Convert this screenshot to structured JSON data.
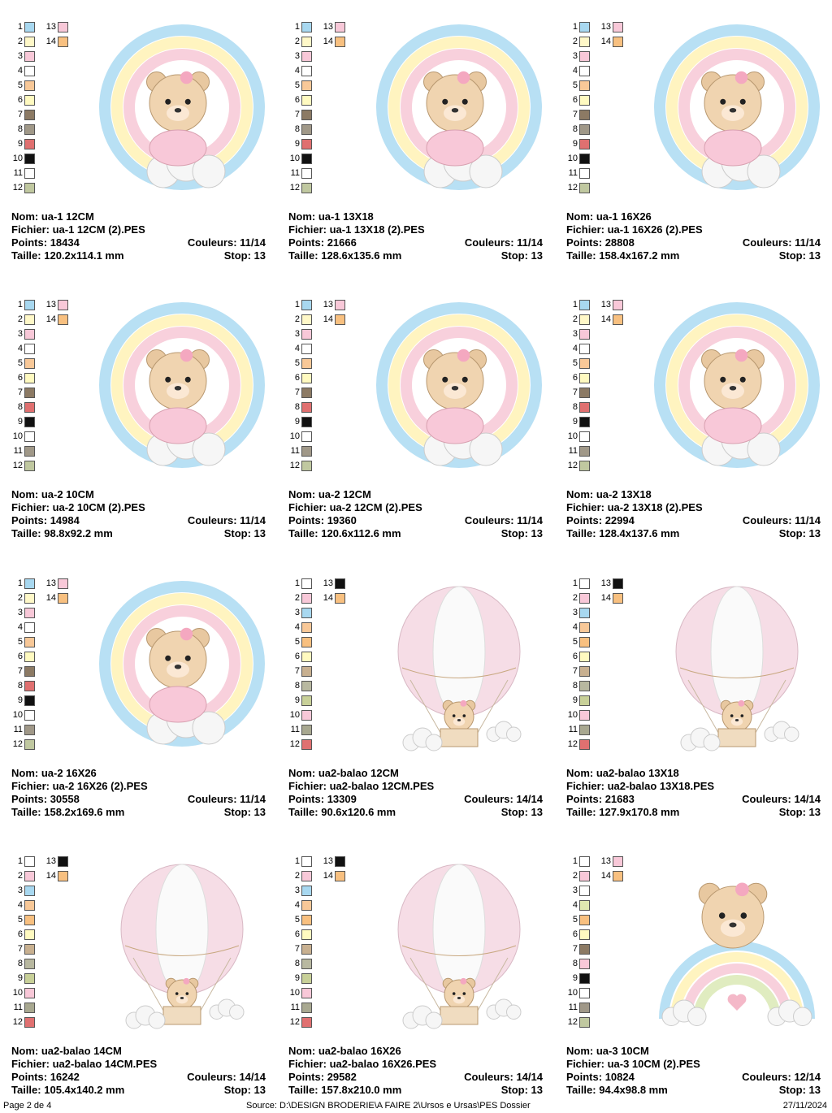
{
  "labels": {
    "name": "Nom:",
    "file": "Fichier:",
    "points": "Points:",
    "colors": "Couleurs:",
    "size": "Taille:",
    "stop": "Stop:"
  },
  "swatch_numbers": [
    1,
    2,
    3,
    4,
    5,
    6,
    7,
    8,
    9,
    10,
    11,
    12,
    13,
    14
  ],
  "designs": [
    {
      "name": "ua-1 12CM",
      "file": "ua-1 12CM (2).PES",
      "points": "18434",
      "colors": "11/14",
      "size": "120.2x114.1 mm",
      "stop": "13",
      "swatch_colors": [
        "#a8d8f0",
        "#fff8c8",
        "#f8c8d8",
        "#ffffff",
        "#f8c898",
        "#fffac0",
        "#8c7a64",
        "#a09888",
        "#e07070",
        "#111111",
        "#ffffff",
        "#c0c8a0",
        "#f8c8d8",
        "#f8c080"
      ]
    },
    {
      "name": "ua-1 13X18",
      "file": "ua-1 13X18 (2).PES",
      "points": "21666",
      "colors": "11/14",
      "size": "128.6x135.6 mm",
      "stop": "13",
      "swatch_colors": [
        "#a8d8f0",
        "#fff8c8",
        "#f8c8d8",
        "#ffffff",
        "#f8c898",
        "#fffac0",
        "#8c7a64",
        "#a09888",
        "#e07070",
        "#111111",
        "#ffffff",
        "#c0c8a0",
        "#f8c8d8",
        "#f8c080"
      ]
    },
    {
      "name": "ua-1 16X26",
      "file": "ua-1 16X26 (2).PES",
      "points": "28808",
      "colors": "11/14",
      "size": "158.4x167.2 mm",
      "stop": "13",
      "swatch_colors": [
        "#a8d8f0",
        "#fff8c8",
        "#f8c8d8",
        "#ffffff",
        "#f8c898",
        "#fffac0",
        "#8c7a64",
        "#a09888",
        "#e07070",
        "#111111",
        "#ffffff",
        "#c0c8a0",
        "#f8c8d8",
        "#f8c080"
      ]
    },
    {
      "name": "ua-2 10CM",
      "file": "ua-2 10CM (2).PES",
      "points": "14984",
      "colors": "11/14",
      "size": "98.8x92.2 mm",
      "stop": "13",
      "swatch_colors": [
        "#a8d8f0",
        "#fff8c8",
        "#f8c8d8",
        "#ffffff",
        "#f8c898",
        "#fffac0",
        "#8c7a64",
        "#e07070",
        "#111111",
        "#ffffff",
        "#a09888",
        "#c0c8a0",
        "#f8c8d8",
        "#f8c080"
      ]
    },
    {
      "name": "ua-2 12CM",
      "file": "ua-2 12CM (2).PES",
      "points": "19360",
      "colors": "11/14",
      "size": "120.6x112.6 mm",
      "stop": "13",
      "swatch_colors": [
        "#a8d8f0",
        "#fff8c8",
        "#f8c8d8",
        "#ffffff",
        "#f8c898",
        "#fffac0",
        "#8c7a64",
        "#e07070",
        "#111111",
        "#ffffff",
        "#a09888",
        "#c0c8a0",
        "#f8c8d8",
        "#f8c080"
      ]
    },
    {
      "name": "ua-2 13X18",
      "file": "ua-2 13X18 (2).PES",
      "points": "22994",
      "colors": "11/14",
      "size": "128.4x137.6 mm",
      "stop": "13",
      "swatch_colors": [
        "#a8d8f0",
        "#fff8c8",
        "#f8c8d8",
        "#ffffff",
        "#f8c898",
        "#fffac0",
        "#8c7a64",
        "#e07070",
        "#111111",
        "#ffffff",
        "#a09888",
        "#c0c8a0",
        "#f8c8d8",
        "#f8c080"
      ]
    },
    {
      "name": "ua-2 16X26",
      "file": "ua-2 16X26 (2).PES",
      "points": "30558",
      "colors": "11/14",
      "size": "158.2x169.6 mm",
      "stop": "13",
      "swatch_colors": [
        "#a8d8f0",
        "#fff8c8",
        "#f8c8d8",
        "#ffffff",
        "#f8c898",
        "#fffac0",
        "#8c7a64",
        "#e07070",
        "#111111",
        "#ffffff",
        "#a09888",
        "#c0c8a0",
        "#f8c8d8",
        "#f8c080"
      ]
    },
    {
      "name": "ua2-balao 12CM",
      "file": "ua2-balao 12CM.PES",
      "points": "13309",
      "colors": "14/14",
      "size": "90.6x120.6 mm",
      "stop": "13",
      "swatch_colors": [
        "#ffffff",
        "#f8c8d8",
        "#a8d8f0",
        "#f8c898",
        "#f8c080",
        "#fffac0",
        "#c8b090",
        "#b8b8a0",
        "#c8d098",
        "#f8c8d8",
        "#a8a890",
        "#e07070",
        "#111111",
        "#f8c080"
      ]
    },
    {
      "name": "ua2-balao 13X18",
      "file": "ua2-balao 13X18.PES",
      "points": "21683",
      "colors": "14/14",
      "size": "127.9x170.8 mm",
      "stop": "13",
      "swatch_colors": [
        "#ffffff",
        "#f8c8d8",
        "#a8d8f0",
        "#f8c898",
        "#f8c080",
        "#fffac0",
        "#c8b090",
        "#b8b8a0",
        "#c8d098",
        "#f8c8d8",
        "#a8a890",
        "#e07070",
        "#111111",
        "#f8c080"
      ]
    },
    {
      "name": "ua2-balao 14CM",
      "file": "ua2-balao 14CM.PES",
      "points": "16242",
      "colors": "14/14",
      "size": "105.4x140.2 mm",
      "stop": "13",
      "swatch_colors": [
        "#ffffff",
        "#f8c8d8",
        "#a8d8f0",
        "#f8c898",
        "#f8c080",
        "#fffac0",
        "#c8b090",
        "#b8b8a0",
        "#c8d098",
        "#f8c8d8",
        "#a8a890",
        "#e07070",
        "#111111",
        "#f8c080"
      ]
    },
    {
      "name": "ua2-balao 16X26",
      "file": "ua2-balao 16X26.PES",
      "points": "29582",
      "colors": "14/14",
      "size": "157.8x210.0 mm",
      "stop": "13",
      "swatch_colors": [
        "#ffffff",
        "#f8c8d8",
        "#a8d8f0",
        "#f8c898",
        "#f8c080",
        "#fffac0",
        "#c8b090",
        "#b8b8a0",
        "#c8d098",
        "#f8c8d8",
        "#a8a890",
        "#e07070",
        "#111111",
        "#f8c080"
      ]
    },
    {
      "name": "ua-3 10CM",
      "file": "ua-3 10CM (2).PES",
      "points": "10824",
      "colors": "12/14",
      "size": "94.4x98.8 mm",
      "stop": "13",
      "swatch_colors": [
        "#ffffff",
        "#f8c8d8",
        "#ffffff",
        "#e0e8b0",
        "#f8c080",
        "#fffac0",
        "#8c7a64",
        "#f8c8d8",
        "#111111",
        "#ffffff",
        "#a09888",
        "#c0c8a0",
        "#f8c8d8",
        "#f8c080"
      ]
    }
  ],
  "footer": {
    "page": "Page 2 de 4",
    "source": "Source: D:\\DESIGN BRODERIE\\A FAIRE 2\\Ursos e Ursas\\PES Dossier",
    "date": "27/11/2024"
  }
}
